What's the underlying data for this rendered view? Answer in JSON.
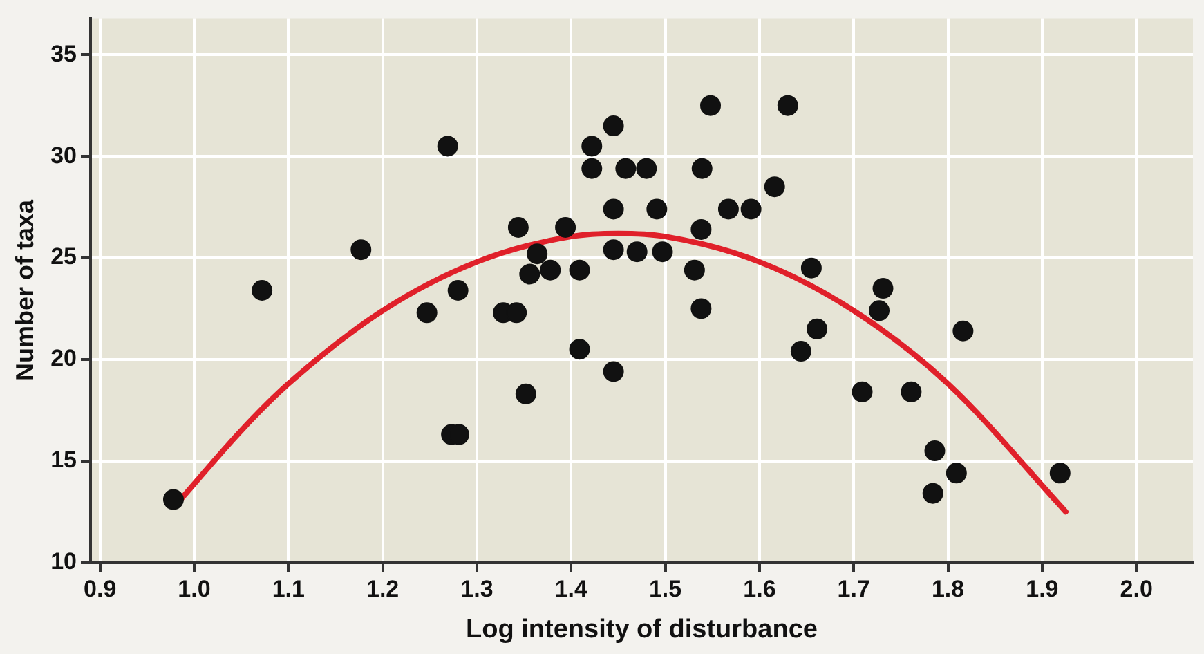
{
  "chart_data": {
    "type": "scatter",
    "xlabel": "Log intensity of disturbance",
    "ylabel": "Number of taxa",
    "xlim": [
      0.89,
      2.06
    ],
    "xticks": [
      0.9,
      {
        "value": 1,
        "label": "1.0"
      },
      1.1,
      1.2,
      1.3,
      1.4,
      1.5,
      1.6,
      1.7,
      1.8,
      1.9,
      {
        "value": 2,
        "label": "2.0"
      }
    ],
    "ylim": [
      10,
      36.8
    ],
    "yticks": [
      10,
      15,
      20,
      25,
      30,
      35
    ],
    "grid": true,
    "legend": false,
    "series": [
      {
        "color": "#111111",
        "marker": "circle",
        "x": [
          0.978,
          1.072,
          1.177,
          1.247,
          1.269,
          1.28,
          1.273,
          1.281,
          1.328,
          1.342,
          1.344,
          1.352,
          1.364,
          1.356,
          1.378,
          1.394,
          1.409,
          1.409,
          1.422,
          1.422,
          1.445,
          1.445,
          1.445,
          1.445,
          1.458,
          1.48,
          1.47,
          1.491,
          1.497,
          1.548,
          1.539,
          1.538,
          1.531,
          1.538,
          1.567,
          1.591,
          1.616,
          1.63,
          1.655,
          1.661,
          1.644,
          1.731,
          1.727,
          1.709,
          1.761,
          1.816,
          1.786,
          1.809,
          1.784,
          1.919
        ],
        "values": [
          13.1,
          23.4,
          25.4,
          22.3,
          30.5,
          23.4,
          16.3,
          16.3,
          22.3,
          22.3,
          26.5,
          18.3,
          25.2,
          24.2,
          24.4,
          26.5,
          24.4,
          20.5,
          30.5,
          29.4,
          31.5,
          27.4,
          25.4,
          19.4,
          29.4,
          29.4,
          25.3,
          27.4,
          25.3,
          32.5,
          29.4,
          26.4,
          24.4,
          22.5,
          27.4,
          27.4,
          28.5,
          32.5,
          24.5,
          21.5,
          20.4,
          23.5,
          22.4,
          18.4,
          18.4,
          21.4,
          15.5,
          14.4,
          13.4,
          14.4
        ]
      },
      {
        "type": "line",
        "color": "#e0202a",
        "marker": "none",
        "x": [
          0.98,
          1.05,
          1.1,
          1.2,
          1.3,
          1.4,
          1.45,
          1.5,
          1.6,
          1.7,
          1.8,
          1.925
        ],
        "values": [
          12.8,
          16.5,
          18.8,
          22.4,
          24.8,
          26.05,
          26.2,
          26.05,
          24.8,
          22.4,
          18.8,
          12.5
        ]
      }
    ]
  }
}
